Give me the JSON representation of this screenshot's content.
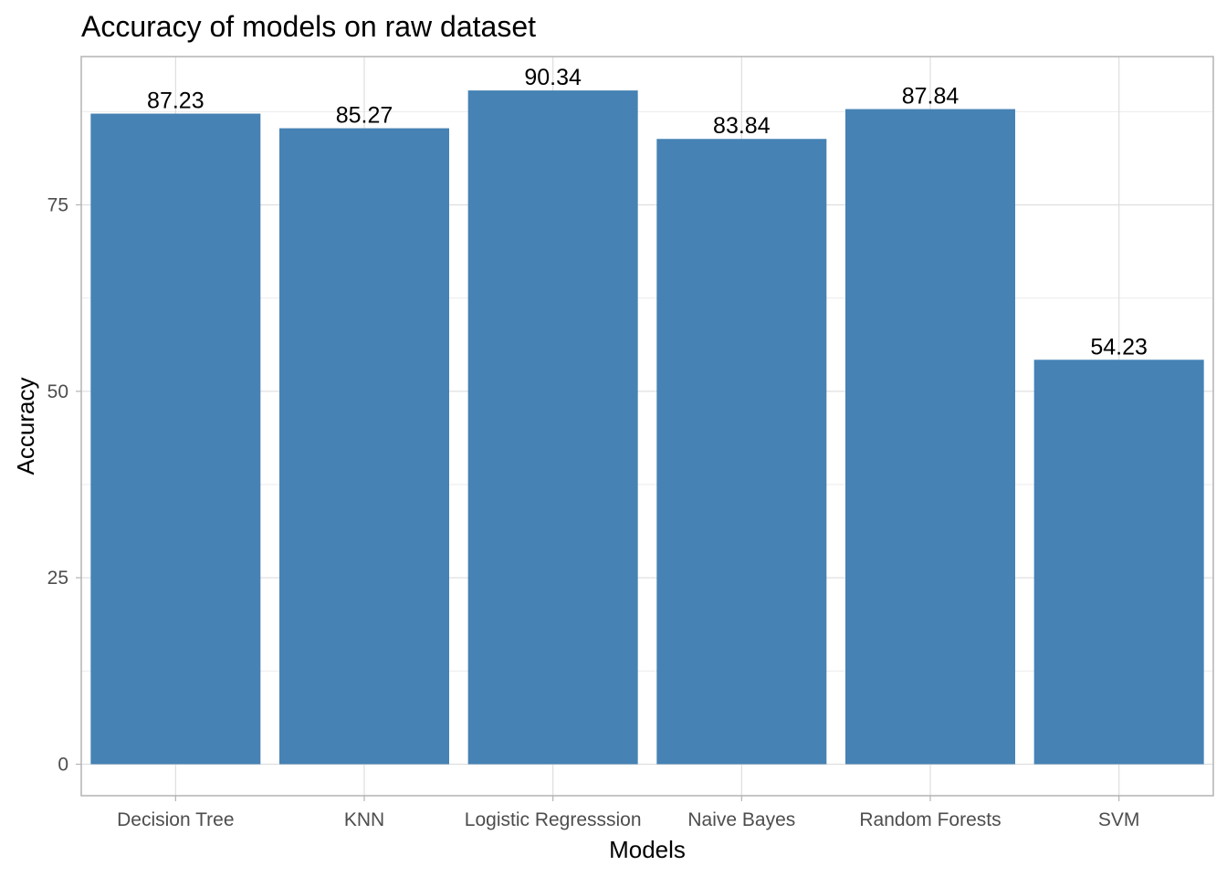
{
  "chart_data": {
    "type": "bar",
    "title": "Accuracy of models on raw dataset",
    "xlabel": "Models",
    "ylabel": "Accuracy",
    "categories": [
      "Decision Tree",
      "KNN",
      "Logistic Regresssion",
      "Naive Bayes",
      "Random Forests",
      "SVM"
    ],
    "values": [
      87.23,
      85.27,
      90.34,
      83.84,
      87.84,
      54.23
    ],
    "data_labels": [
      "87.23",
      "85.27",
      "90.34",
      "83.84",
      "87.84",
      "54.23"
    ],
    "ylim": [
      0,
      94.85
    ],
    "yticks": [
      0,
      25,
      50,
      75
    ],
    "ytick_labels": [
      "0",
      "25",
      "50",
      "75"
    ],
    "bar_color": "#4682B4",
    "grid": true,
    "legend": "none"
  }
}
